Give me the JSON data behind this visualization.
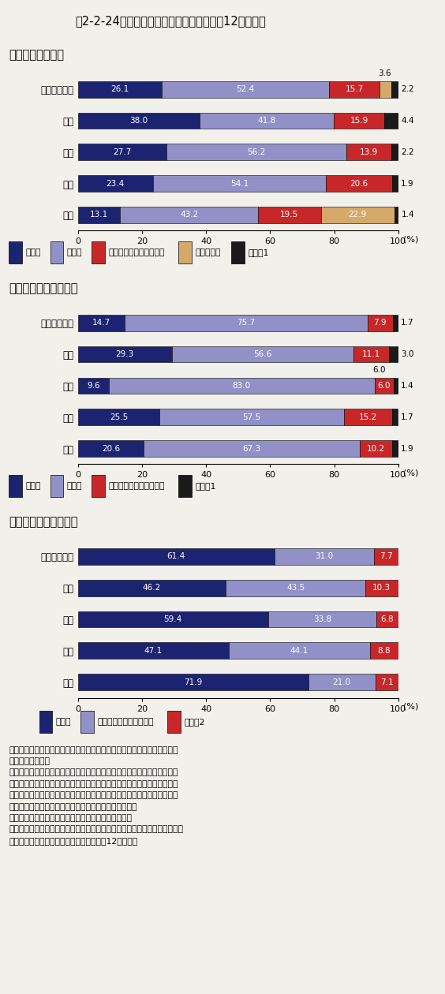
{
  "title": "第2-2-24図　大学の学位別進路動向（平成12年３月）",
  "section1_title": "（１）大学卒業時",
  "section2_title": "（２）修士課程修了時",
  "section3_title": "（３）博士課程修了時",
  "categories": [
    "自然科学平均",
    "理学",
    "工学",
    "農学",
    "保健"
  ],
  "sec1_data": {
    "進学者": [
      26.1,
      38.0,
      27.7,
      23.4,
      13.1
    ],
    "就職者": [
      52.4,
      41.8,
      56.2,
      54.1,
      43.2
    ],
    "就職が決まっていない者": [
      15.7,
      15.9,
      13.9,
      20.6,
      19.5
    ],
    "臨床研修医": [
      3.6,
      0.0,
      0.0,
      0.0,
      22.9
    ],
    "その他1": [
      2.2,
      4.4,
      2.2,
      1.9,
      1.4
    ]
  },
  "sec1_above": {
    "row": 4,
    "label": "3.6",
    "cum": 94.1
  },
  "sec2_data": {
    "進学者": [
      14.7,
      29.3,
      9.6,
      25.5,
      20.6
    ],
    "就職者": [
      75.7,
      56.6,
      83.0,
      57.5,
      67.3
    ],
    "就職が決まっていない者": [
      7.9,
      11.1,
      6.0,
      15.2,
      10.2
    ],
    "その他1": [
      1.7,
      3.0,
      1.4,
      1.7,
      1.9
    ]
  },
  "sec2_above": {
    "row": 2,
    "label": "6.0",
    "cum": 92.6
  },
  "sec3_data": {
    "就職者": [
      61.4,
      46.2,
      59.4,
      47.1,
      71.9
    ],
    "就職が決まっていない者": [
      31.0,
      43.5,
      33.8,
      44.1,
      21.0
    ],
    "その他2": [
      7.7,
      10.3,
      6.8,
      8.8,
      7.1
    ]
  },
  "colors": {
    "進学者": "#1c2471",
    "就職者": "#9191c8",
    "就職が決まっていない者": "#c8272a",
    "臨床研修医": "#d4a96a",
    "その他1": "#1a1a1a",
    "その他2": "#c8272a"
  },
  "sec3_colors": {
    "就職者": "#1c2471",
    "就職が決まっていない者": "#9191c8",
    "その他2": "#c8272a"
  },
  "bg_color": "#f2f0eb",
  "note_lines": [
    "注）１．「自然科学平均」とは、理学・工学・農学・保健の合計の平均値",
    "　　　　である。",
    "　　２．「就職が決まっていない者」とは、一時的な仕事に就いた者、家",
    "　　　　事手伝い、研究生として学校に残っている者及び専修学校・各種",
    "　　　　学校・外国の学校・職業能力開発施設等へ入学した者、又は就職",
    "　　　　でも進学者でもないことが明らかな者である。",
    "　　３．「その他１」とは、死亡・不詳の者である。",
    "　　４．「その他２」とは、進学者、臨床研修医、死亡・不詳の者である。",
    "資料：文部省「学校基本調査報告書（平成12年度）」"
  ]
}
